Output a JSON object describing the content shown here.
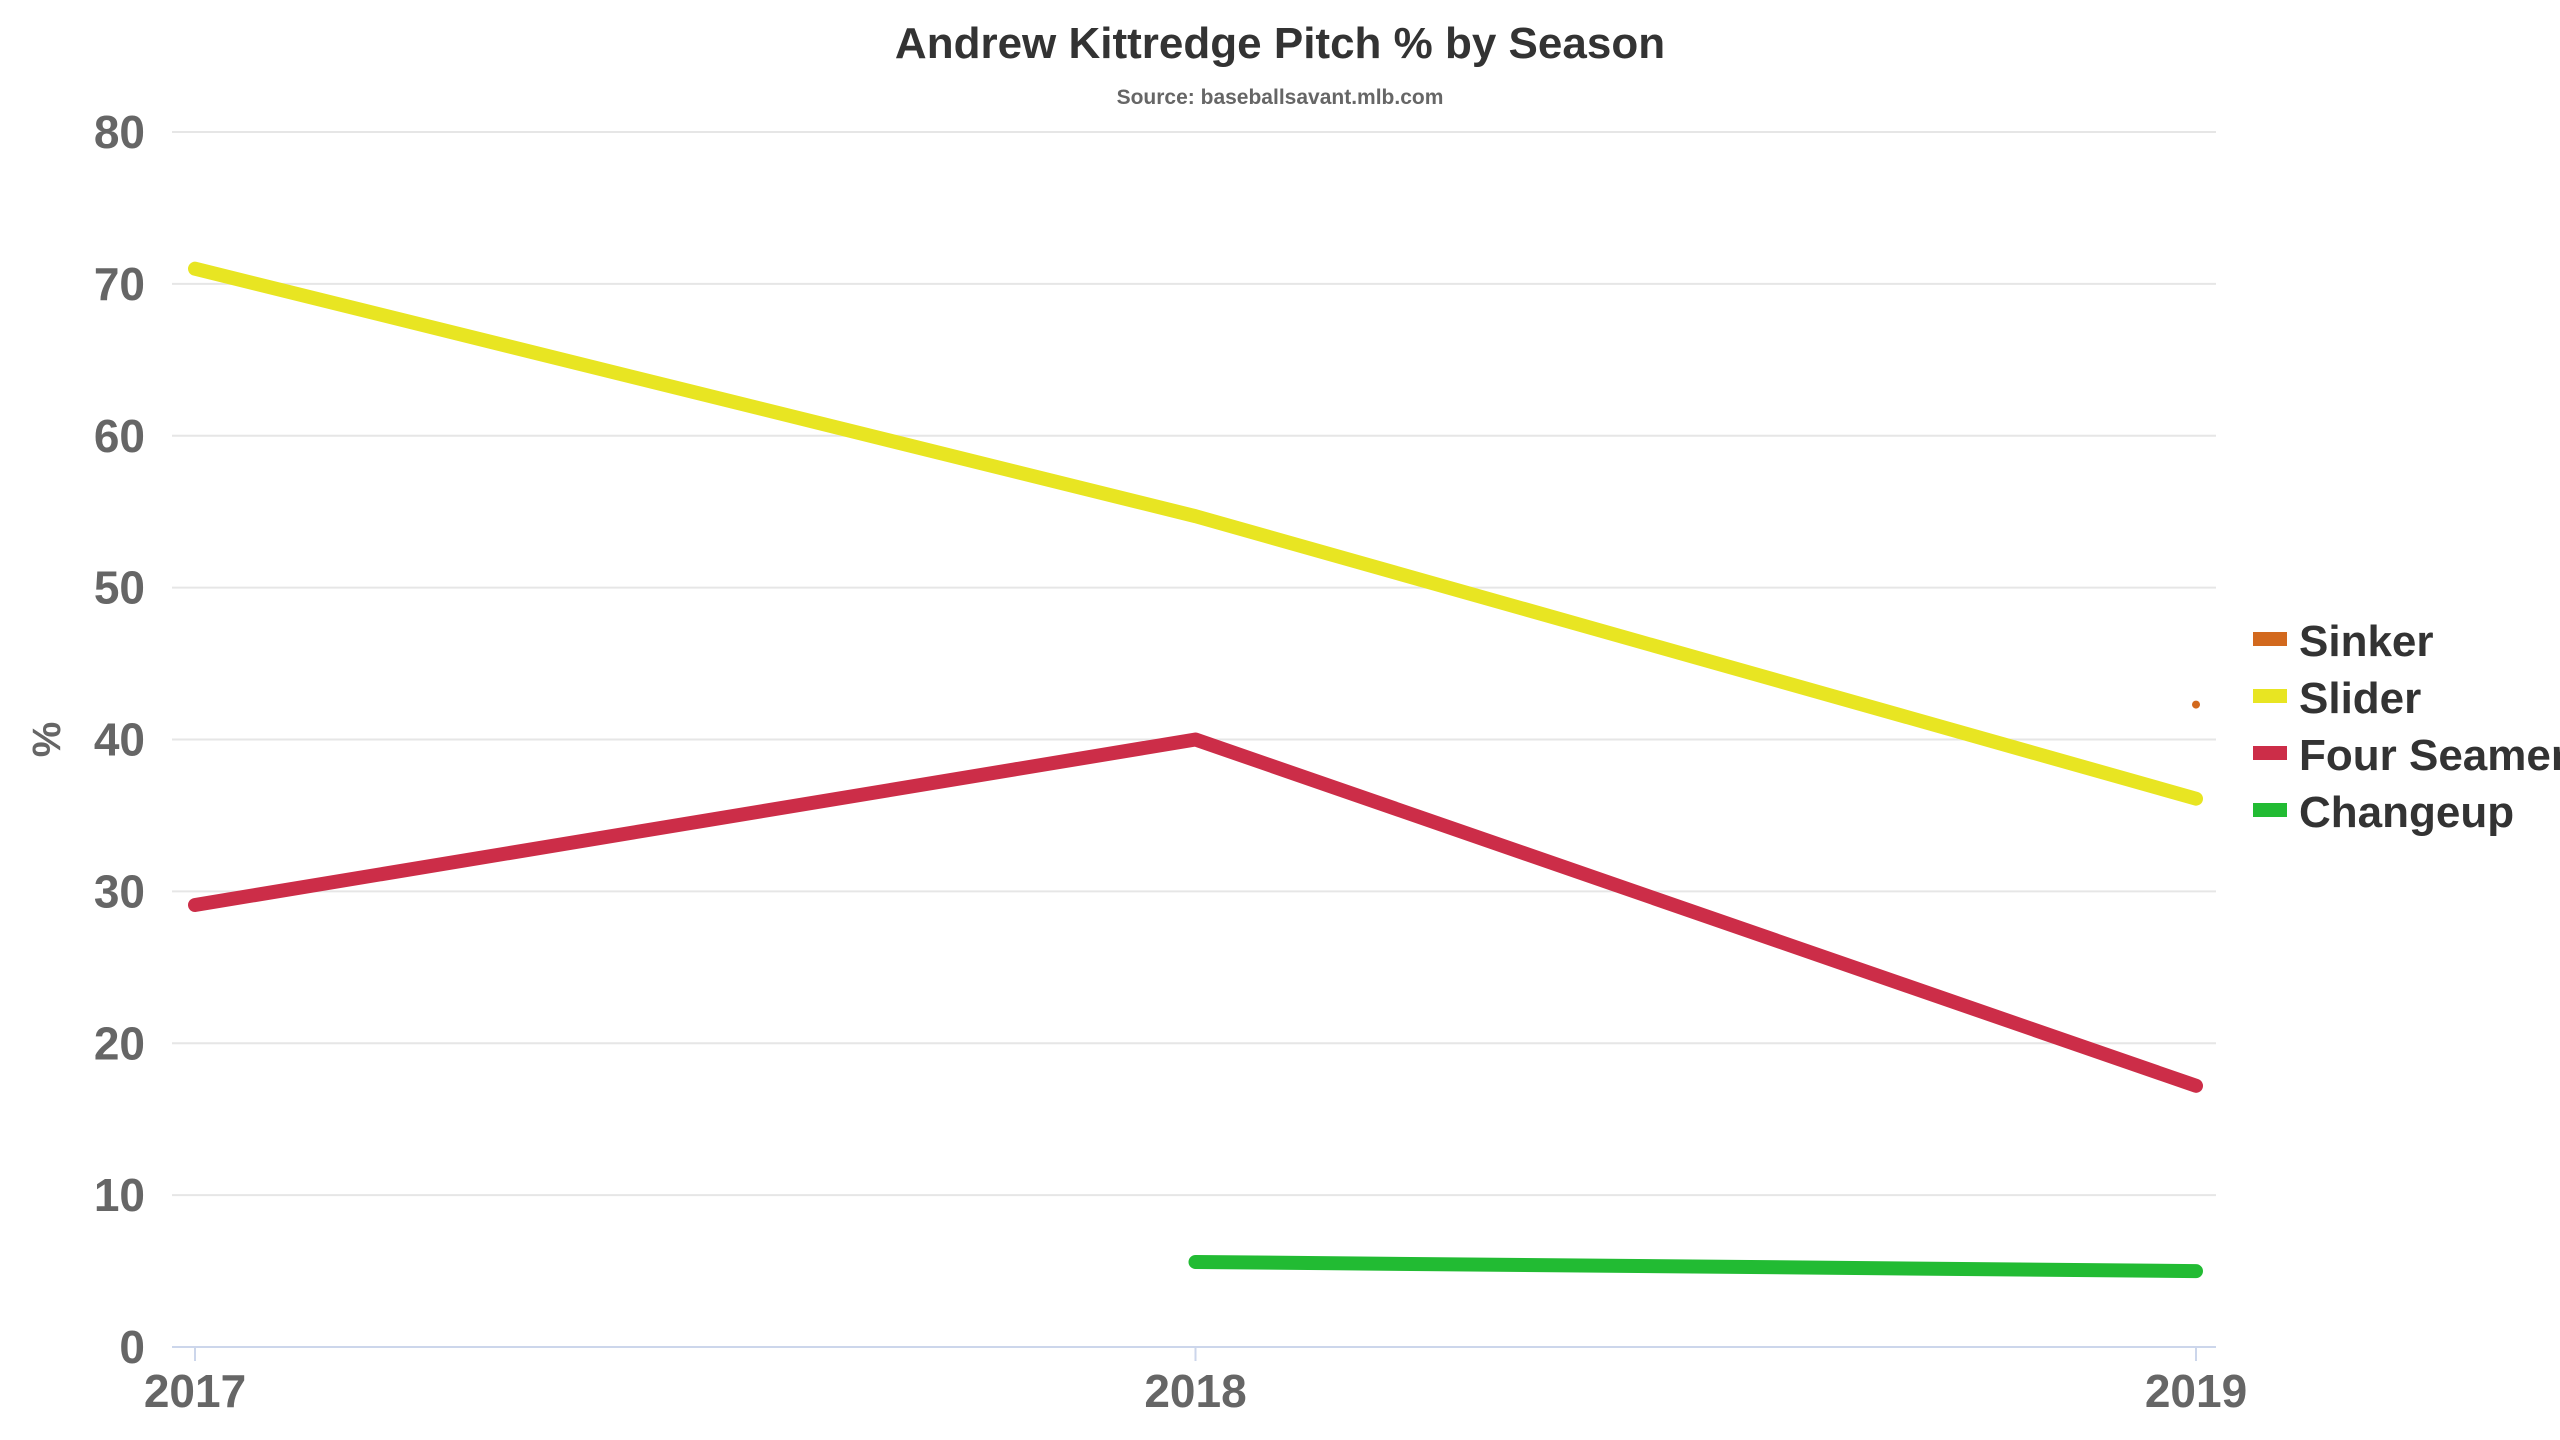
{
  "chart_data": {
    "type": "line",
    "title": "Andrew Kittredge Pitch % by Season",
    "subtitle": "Source: baseballsavant.mlb.com",
    "xlabel": "",
    "ylabel": "%",
    "categories": [
      "2017",
      "2018",
      "2019"
    ],
    "ylim": [
      0,
      80
    ],
    "yticks": [
      0,
      10,
      20,
      30,
      40,
      50,
      60,
      70,
      80
    ],
    "grid": true,
    "legend_position": "right",
    "series": [
      {
        "name": "Sinker",
        "color": "#d2691e",
        "values": [
          null,
          null,
          42.3
        ]
      },
      {
        "name": "Slider",
        "color": "#e8e522",
        "values": [
          71.0,
          54.7,
          36.1
        ]
      },
      {
        "name": "Four Seamer",
        "color": "#cc2d48",
        "values": [
          29.1,
          40.0,
          17.2
        ]
      },
      {
        "name": "Changeup",
        "color": "#22bb33",
        "values": [
          null,
          5.6,
          5.0
        ]
      }
    ]
  }
}
